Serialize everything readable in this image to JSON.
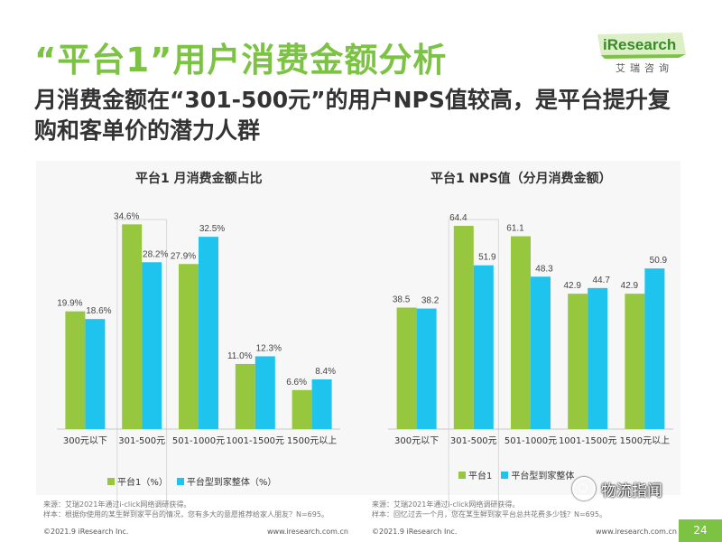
{
  "header": {
    "title": "“平台1”用户消费金额分析",
    "subtitle": "月消费金额在“301-500元”的用户NPS值较高，是平台提升复购和客单价的潜力人群",
    "logo_brand": "iResearch",
    "logo_cn": "艾瑞咨询"
  },
  "colors": {
    "green": "#97c73f",
    "cyan": "#1fc4ee",
    "accent": "#7cc243"
  },
  "chart_data": [
    {
      "type": "bar",
      "title": "平台1 月消费金额占比",
      "categories": [
        "300元以下",
        "301-500元",
        "501-1000元",
        "1001-1500元",
        "1500元以上"
      ],
      "series": [
        {
          "name": "平台1（%）",
          "values": [
            19.9,
            34.6,
            27.9,
            11.0,
            6.6
          ],
          "labels": [
            "19.9%",
            "34.6%",
            "27.9%",
            "11.0%",
            "6.6%"
          ]
        },
        {
          "name": "平台型到家整体（%）",
          "values": [
            18.6,
            28.2,
            32.5,
            12.3,
            8.4
          ],
          "labels": [
            "18.6%",
            "28.2%",
            "32.5%",
            "12.3%",
            "8.4%"
          ]
        }
      ],
      "ylim": [
        0,
        40
      ],
      "highlight_category": "301-500元"
    },
    {
      "type": "bar",
      "title": "平台1 NPS值（分月消费金额）",
      "categories": [
        "300元以下",
        "301-500元",
        "501-1000元",
        "1001-1500元",
        "1500元以上"
      ],
      "series": [
        {
          "name": "平台1",
          "values": [
            38.5,
            64.4,
            61.1,
            42.9,
            42.9
          ],
          "labels": [
            "38.5",
            "64.4",
            "61.1",
            "42.9",
            "42.9"
          ]
        },
        {
          "name": "平台型到家整体",
          "values": [
            38.2,
            51.9,
            48.3,
            44.7,
            50.9
          ],
          "labels": [
            "38.2",
            "51.9",
            "48.3",
            "44.7",
            "50.9"
          ]
        }
      ],
      "ylim": [
        0,
        75
      ],
      "highlight_category": "301-500元"
    }
  ],
  "footer": {
    "left_source": "来源：艾瑞2021年通过i-click网络调研获得。",
    "left_sample": "样本：根据你使用的某生鲜到家平台的情况，您有多大的意愿推荐给家人朋友？N=695。",
    "right_source": "来源：艾瑞2021年通过i-click网络调研获得。",
    "right_sample": "样本：回忆过去一个月，您在某生鲜到家平台总共花费多少钱？N=695。",
    "copyright_left": "©2021.9 iResearch Inc.",
    "url_left": "www.iresearch.com.cn",
    "copyright_right": "©2021.9 iResearch Inc.",
    "url_right": "www.iresearch.com.cn",
    "page_number": "24",
    "wechat_name": "物流指闻"
  }
}
